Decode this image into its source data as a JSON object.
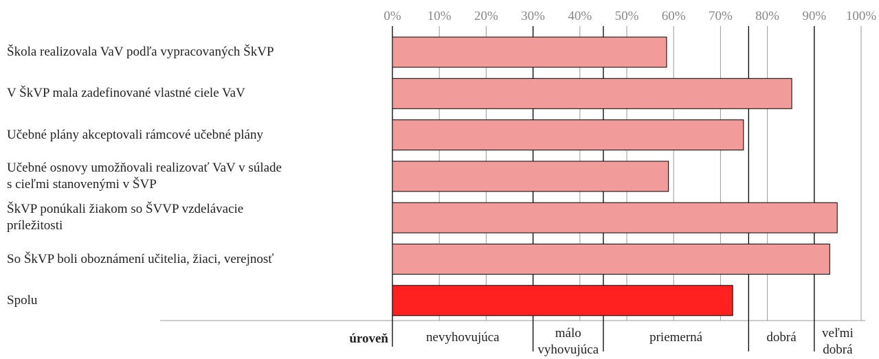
{
  "chart_data": {
    "type": "hbar",
    "categories": [
      "Škola realizovala VaV podľa vypracovaných ŠkVP",
      "V ŠkVP mala zadefinované vlastné ciele VaV",
      "Učebné plány akceptovali rámcové učebné plány",
      "Učebné osnovy umožňovali realizovať VaV v súlade\ns cieľmi stanovenými v ŠVP",
      "ŠkVP ponúkali žiakom so ŠVVP vzdelávacie\npríležitosti",
      "So ŠkVP boli oboznámení učitelia, žiaci, verejnosť",
      "Spolu"
    ],
    "values": [
      58.5,
      85.2,
      74.9,
      58.9,
      94.9,
      93.3,
      72.6
    ],
    "colors": [
      "#f29b9b",
      "#f29b9b",
      "#f29b9b",
      "#f29b9b",
      "#f29b9b",
      "#f29b9b",
      "#ff2020"
    ],
    "xlim": [
      0,
      100
    ],
    "xticks": [
      {
        "value": 0,
        "label": "0%"
      },
      {
        "value": 10,
        "label": "10%"
      },
      {
        "value": 20,
        "label": "20%"
      },
      {
        "value": 30,
        "label": "30%"
      },
      {
        "value": 40,
        "label": "40%"
      },
      {
        "value": 50,
        "label": "50%"
      },
      {
        "value": 60,
        "label": "60%"
      },
      {
        "value": 70,
        "label": "70%"
      },
      {
        "value": 80,
        "label": "80%"
      },
      {
        "value": 90,
        "label": "90%"
      },
      {
        "value": 100,
        "label": "100%"
      }
    ],
    "grid": true,
    "level_title": "úroveň",
    "levels": [
      {
        "label": "nevyhovujúca",
        "from": 0,
        "to": 30
      },
      {
        "label": "málo\nvyhovujúca",
        "from": 30,
        "to": 45
      },
      {
        "label": "priemerná",
        "from": 45,
        "to": 76
      },
      {
        "label": "dobrá",
        "from": 76,
        "to": 90
      },
      {
        "label": "veľmi\ndobrá",
        "from": 90,
        "to": 100
      }
    ]
  }
}
